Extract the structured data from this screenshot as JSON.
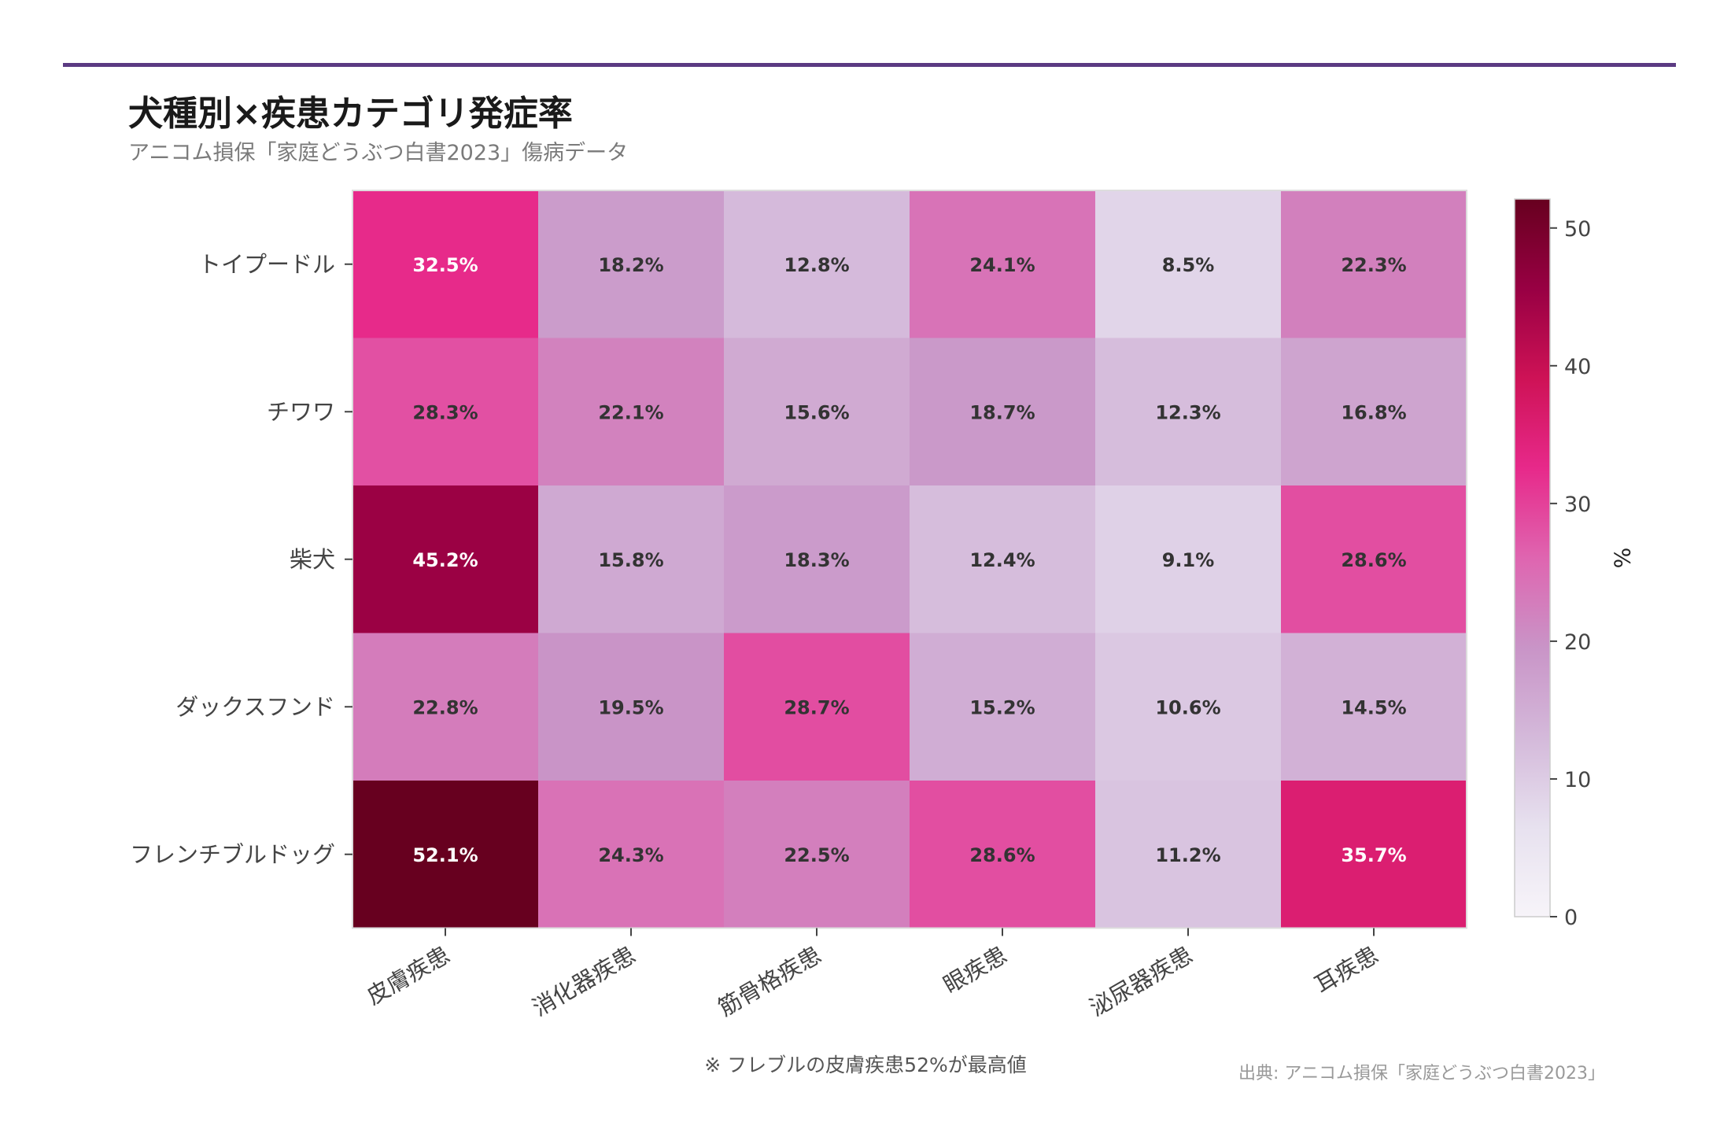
{
  "header": {
    "title": "犬種別×疾患カテゴリ発症率",
    "subtitle": "アニコム損保「家庭どうぶつ白書2023」傷病データ"
  },
  "footer": {
    "note": "※ フレブルの皮膚疾患52%が最高値",
    "source": "出典: アニコム損保「家庭どうぶつ白書2023」"
  },
  "colors": {
    "accent": "#5b3a82",
    "scale": [
      "#f7f4f9",
      "#e7e1ef",
      "#d4b9da",
      "#c994c7",
      "#df65b0",
      "#e7298a",
      "#ce1256",
      "#980043",
      "#67001f"
    ]
  },
  "chart_data": {
    "type": "heatmap",
    "rows": [
      "トイプードル",
      "チワワ",
      "柴犬",
      "ダックスフンド",
      "フレンチブルドッグ"
    ],
    "columns": [
      "皮膚疾患",
      "消化器疾患",
      "筋骨格疾患",
      "眼疾患",
      "泌尿器疾患",
      "耳疾患"
    ],
    "values": [
      [
        32.5,
        18.2,
        12.8,
        24.1,
        8.5,
        22.3
      ],
      [
        28.3,
        22.1,
        15.6,
        18.7,
        12.3,
        16.8
      ],
      [
        45.2,
        15.8,
        18.3,
        12.4,
        9.1,
        28.6
      ],
      [
        22.8,
        19.5,
        28.7,
        15.2,
        10.6,
        14.5
      ],
      [
        52.1,
        24.3,
        22.5,
        28.6,
        11.2,
        35.7
      ]
    ],
    "value_suffix": "%",
    "colorbar": {
      "label": "%",
      "range": [
        0,
        52.1
      ],
      "ticks": [
        0,
        10,
        20,
        30,
        40,
        50
      ]
    }
  }
}
